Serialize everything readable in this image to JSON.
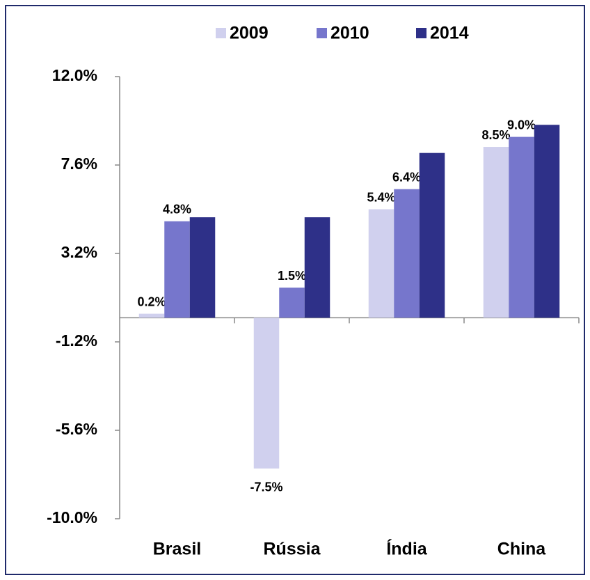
{
  "chart_data": {
    "type": "bar",
    "categories": [
      "Brasil",
      "Rússia",
      "Índia",
      "China"
    ],
    "series": [
      {
        "name": "2009",
        "color": "#d0d0ee",
        "values": [
          0.2,
          -7.5,
          5.4,
          8.5
        ],
        "value_labels": [
          "0.2%",
          "-7.5%",
          "5.4%",
          "8.5%"
        ]
      },
      {
        "name": "2010",
        "color": "#7676cc",
        "values": [
          4.8,
          1.5,
          6.4,
          9.0
        ],
        "value_labels": [
          "4.8%",
          "1.5%",
          "6.4%",
          "9.0%"
        ]
      },
      {
        "name": "2014",
        "color": "#2e3088",
        "values": [
          5.0,
          5.0,
          8.2,
          9.6
        ],
        "value_labels": [
          null,
          null,
          null,
          null
        ]
      }
    ],
    "ylim": [
      -10,
      12
    ],
    "yticks": [
      {
        "value": -10,
        "label": "-10.0%"
      },
      {
        "value": -5.6,
        "label": "-5.6%"
      },
      {
        "value": -1.2,
        "label": "-1.2%"
      },
      {
        "value": 3.2,
        "label": "3.2%"
      },
      {
        "value": 7.6,
        "label": "7.6%"
      },
      {
        "value": 12,
        "label": "12.0%"
      }
    ],
    "legend": "top",
    "grid": false
  }
}
